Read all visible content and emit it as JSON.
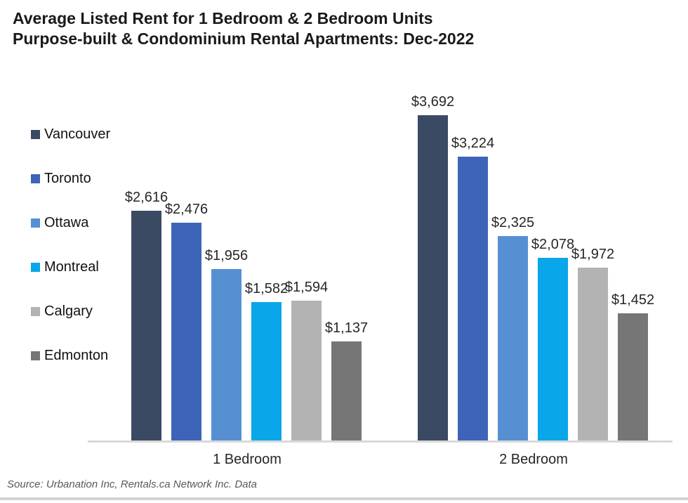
{
  "title": {
    "line1": "Average Listed Rent for 1 Bedroom & 2 Bedroom Units",
    "line2": "Purpose-built & Condominium Rental Apartments: Dec-2022"
  },
  "source": "Source: Urbanation Inc, Rentals.ca Network Inc. Data",
  "colors": {
    "axis_line": "#d9d9d9",
    "data_label_text": "#262626",
    "source_text": "#595959"
  },
  "chart_data": {
    "type": "bar",
    "title": "Average Listed Rent for 1 Bedroom & 2 Bedroom Units — Purpose-built & Condominium Rental Apartments: Dec-2022",
    "categories": [
      "1 Bedroom",
      "2 Bedroom"
    ],
    "series": [
      {
        "name": "Vancouver",
        "color": "#3b4a63",
        "values": [
          2616,
          3692
        ],
        "labels": [
          "$2,616",
          "$3,692"
        ]
      },
      {
        "name": "Toronto",
        "color": "#3d64b8",
        "values": [
          2476,
          3224
        ],
        "labels": [
          "$2,476",
          "$3,224"
        ]
      },
      {
        "name": "Ottawa",
        "color": "#5690d2",
        "values": [
          1956,
          2325
        ],
        "labels": [
          "$1,956",
          "$2,325"
        ]
      },
      {
        "name": "Montreal",
        "color": "#09a6e9",
        "values": [
          1582,
          2078
        ],
        "labels": [
          "$1,582",
          "$2,078"
        ]
      },
      {
        "name": "Calgary",
        "color": "#b3b3b3",
        "values": [
          1594,
          1972
        ],
        "labels": [
          "$1,594",
          "$1,972"
        ]
      },
      {
        "name": "Edmonton",
        "color": "#767676",
        "values": [
          1137,
          1452
        ],
        "labels": [
          "$1,137",
          "$1,452"
        ]
      }
    ],
    "ylim": [
      0,
      3692
    ],
    "grid": false,
    "legend_position": "left",
    "xlabel": "",
    "ylabel": ""
  }
}
